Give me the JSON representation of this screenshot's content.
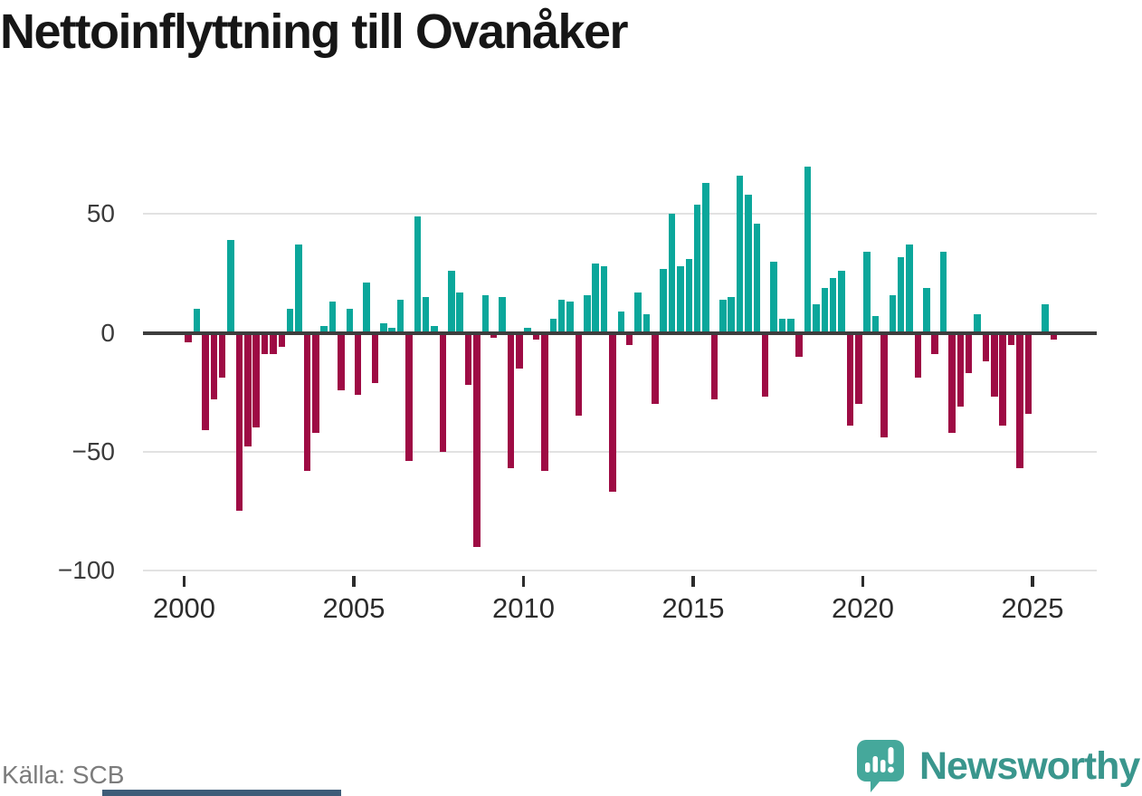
{
  "title": "Nettoinflyttning till Ovanåker",
  "source": "Källa: SCB",
  "branding": {
    "logo_text": "Newsworthy",
    "icon": "newsworthy-speech-bubble-chart-icon",
    "icon_color": "#45a89b",
    "text_color": "#3a968d",
    "strip_color": "#3e5c78"
  },
  "chart_data": {
    "type": "bar",
    "title": "Nettoinflyttning till Ovanåker",
    "frequency": "quarterly",
    "start_period": "2000Q1",
    "end_period": "2025Q3",
    "quarters": [
      "2000Q1",
      "2000Q2",
      "2000Q3",
      "2000Q4",
      "2001Q1",
      "2001Q2",
      "2001Q3",
      "2001Q4",
      "2002Q1",
      "2002Q2",
      "2002Q3",
      "2002Q4",
      "2003Q1",
      "2003Q2",
      "2003Q3",
      "2003Q4",
      "2004Q1",
      "2004Q2",
      "2004Q3",
      "2004Q4",
      "2005Q1",
      "2005Q2",
      "2005Q3",
      "2005Q4",
      "2006Q1",
      "2006Q2",
      "2006Q3",
      "2006Q4",
      "2007Q1",
      "2007Q2",
      "2007Q3",
      "2007Q4",
      "2008Q1",
      "2008Q2",
      "2008Q3",
      "2008Q4",
      "2009Q1",
      "2009Q2",
      "2009Q3",
      "2009Q4",
      "2010Q1",
      "2010Q2",
      "2010Q3",
      "2010Q4",
      "2011Q1",
      "2011Q2",
      "2011Q3",
      "2011Q4",
      "2012Q1",
      "2012Q2",
      "2012Q3",
      "2012Q4",
      "2013Q1",
      "2013Q2",
      "2013Q3",
      "2013Q4",
      "2014Q1",
      "2014Q2",
      "2014Q3",
      "2014Q4",
      "2015Q1",
      "2015Q2",
      "2015Q3",
      "2015Q4",
      "2016Q1",
      "2016Q2",
      "2016Q3",
      "2016Q4",
      "2017Q1",
      "2017Q2",
      "2017Q3",
      "2017Q4",
      "2018Q1",
      "2018Q2",
      "2018Q3",
      "2018Q4",
      "2019Q1",
      "2019Q2",
      "2019Q3",
      "2019Q4",
      "2020Q1",
      "2020Q2",
      "2020Q3",
      "2020Q4",
      "2021Q1",
      "2021Q2",
      "2021Q3",
      "2021Q4",
      "2022Q1",
      "2022Q2",
      "2022Q3",
      "2022Q4",
      "2023Q1",
      "2023Q2",
      "2023Q3",
      "2023Q4",
      "2024Q1",
      "2024Q2",
      "2024Q3",
      "2024Q4",
      "2025Q1",
      "2025Q2",
      "2025Q3"
    ],
    "values": [
      -4,
      10,
      -41,
      -28,
      -19,
      39,
      -75,
      -48,
      -40,
      -9,
      -9,
      -6,
      10,
      37,
      -58,
      -42,
      3,
      13,
      -24,
      10,
      -26,
      21,
      -21,
      4,
      2,
      14,
      -54,
      49,
      15,
      3,
      -50,
      26,
      17,
      -22,
      -90,
      16,
      -2,
      15,
      -57,
      -15,
      2,
      -3,
      -58,
      6,
      14,
      13,
      -35,
      16,
      29,
      28,
      -67,
      9,
      -5,
      17,
      8,
      -30,
      27,
      50,
      28,
      31,
      54,
      63,
      -28,
      14,
      15,
      66,
      58,
      46,
      -27,
      30,
      6,
      6,
      -10,
      70,
      12,
      19,
      23,
      26,
      -39,
      -30,
      34,
      7,
      -44,
      16,
      32,
      37,
      -19,
      19,
      -9,
      34,
      -42,
      -31,
      -17,
      8,
      -12,
      -27,
      -39,
      -5,
      -57,
      -34,
      0,
      12,
      -3
    ],
    "y_ticks": [
      50,
      0,
      -50,
      -100
    ],
    "y_tick_labels": [
      "50",
      "0",
      "−50",
      "−100"
    ],
    "x_tick_labels": [
      "2000",
      "2005",
      "2010",
      "2015",
      "2020",
      "2025"
    ],
    "ylim": [
      -105,
      75
    ],
    "grid": true,
    "legend": "none",
    "colors": {
      "positive": "#0ba79b",
      "negative": "#9e0b44"
    }
  }
}
